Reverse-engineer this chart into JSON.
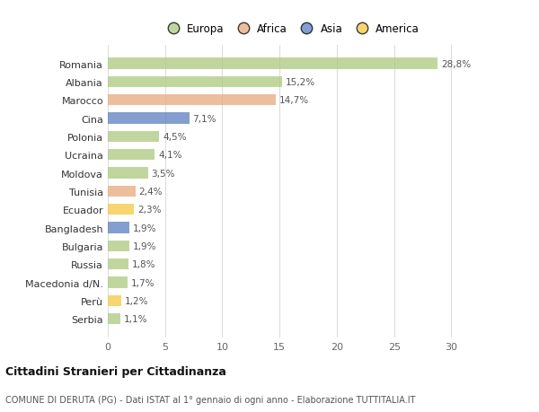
{
  "countries": [
    "Romania",
    "Albania",
    "Marocco",
    "Cina",
    "Polonia",
    "Ucraina",
    "Moldova",
    "Tunisia",
    "Ecuador",
    "Bangladesh",
    "Bulgaria",
    "Russia",
    "Macedonia d/N.",
    "Perù",
    "Serbia"
  ],
  "values": [
    28.8,
    15.2,
    14.7,
    7.1,
    4.5,
    4.1,
    3.5,
    2.4,
    2.3,
    1.9,
    1.9,
    1.8,
    1.7,
    1.2,
    1.1
  ],
  "labels": [
    "28,8%",
    "15,2%",
    "14,7%",
    "7,1%",
    "4,5%",
    "4,1%",
    "3,5%",
    "2,4%",
    "2,3%",
    "1,9%",
    "1,9%",
    "1,8%",
    "1,7%",
    "1,2%",
    "1,1%"
  ],
  "continents": [
    "Europa",
    "Europa",
    "Africa",
    "Asia",
    "Europa",
    "Europa",
    "Europa",
    "Africa",
    "America",
    "Asia",
    "Europa",
    "Europa",
    "Europa",
    "America",
    "Europa"
  ],
  "colors": {
    "Europa": "#adc97e",
    "Africa": "#e8a87c",
    "Asia": "#5b7fbf",
    "America": "#f5c842"
  },
  "legend_items": [
    "Europa",
    "Africa",
    "Asia",
    "America"
  ],
  "legend_colors": [
    "#adc97e",
    "#e8a87c",
    "#5b7fbf",
    "#f5c842"
  ],
  "title": "Cittadini Stranieri per Cittadinanza",
  "subtitle": "COMUNE DI DERUTA (PG) - Dati ISTAT al 1° gennaio di ogni anno - Elaborazione TUTTITALIA.IT",
  "xlim": [
    0,
    32
  ],
  "xticks": [
    0,
    5,
    10,
    15,
    20,
    25,
    30
  ],
  "bg_color": "#ffffff",
  "grid_color": "#dddddd",
  "bar_alpha": 0.75,
  "bar_height": 0.6
}
